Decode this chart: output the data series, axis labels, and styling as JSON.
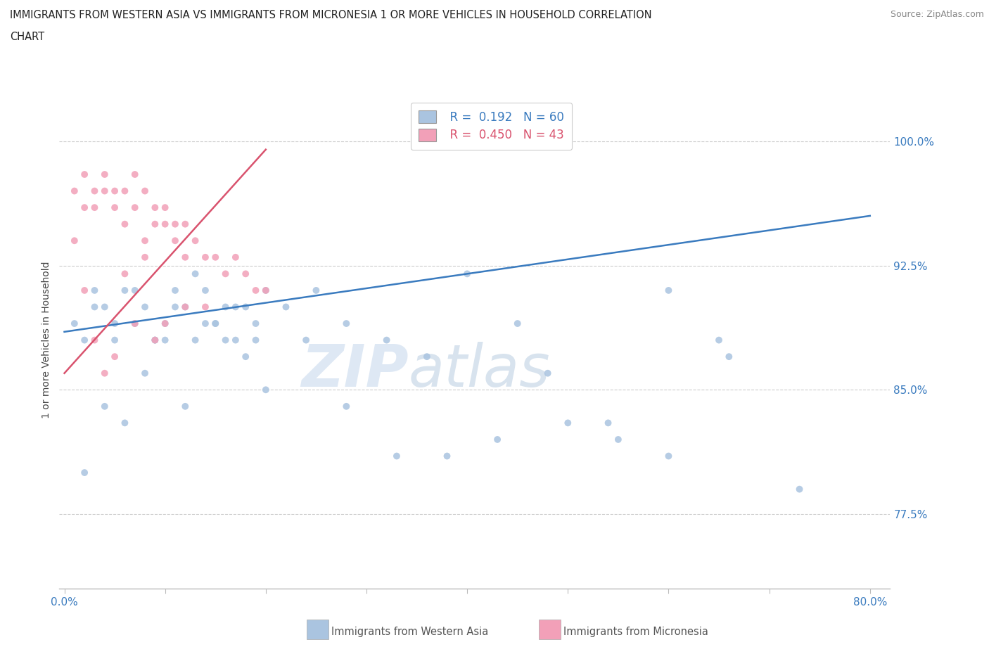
{
  "title_line1": "IMMIGRANTS FROM WESTERN ASIA VS IMMIGRANTS FROM MICRONESIA 1 OR MORE VEHICLES IN HOUSEHOLD CORRELATION",
  "title_line2": "CHART",
  "source": "Source: ZipAtlas.com",
  "ylabel": "1 or more Vehicles in Household",
  "ytick_vals": [
    77.5,
    85.0,
    92.5,
    100.0
  ],
  "ytick_labels": [
    "77.5%",
    "85.0%",
    "92.5%",
    "100.0%"
  ],
  "ymin": 73.0,
  "ymax": 103.0,
  "xmin": -0.5,
  "xmax": 82.0,
  "legend_r1": "R =  0.192",
  "legend_n1": "N = 60",
  "legend_r2": "R =  0.450",
  "legend_n2": "N = 43",
  "color_western_asia": "#aac4e0",
  "color_micronesia": "#f2a0b8",
  "trend_color_western": "#3a7bbf",
  "trend_color_micronesia": "#d9536e",
  "watermark_zip": "ZIP",
  "watermark_atlas": "atlas",
  "wa_x": [
    1,
    2,
    3,
    4,
    5,
    6,
    7,
    8,
    9,
    10,
    11,
    12,
    13,
    14,
    15,
    16,
    17,
    18,
    19,
    20,
    3,
    5,
    7,
    9,
    11,
    13,
    15,
    17,
    19,
    22,
    25,
    28,
    32,
    36,
    40,
    45,
    50,
    55,
    60,
    65,
    2,
    4,
    6,
    8,
    10,
    12,
    14,
    16,
    18,
    20,
    24,
    28,
    33,
    38,
    43,
    48,
    54,
    60,
    66,
    73
  ],
  "wa_y": [
    89,
    88,
    91,
    90,
    88,
    91,
    89,
    90,
    88,
    89,
    91,
    90,
    88,
    91,
    89,
    90,
    88,
    90,
    89,
    91,
    90,
    89,
    91,
    88,
    90,
    92,
    89,
    90,
    88,
    90,
    91,
    89,
    88,
    87,
    92,
    89,
    83,
    82,
    91,
    88,
    80,
    84,
    83,
    86,
    88,
    84,
    89,
    88,
    87,
    85,
    88,
    84,
    81,
    81,
    82,
    86,
    83,
    81,
    87,
    79
  ],
  "mic_x": [
    1,
    1,
    2,
    2,
    3,
    3,
    4,
    4,
    5,
    5,
    6,
    6,
    7,
    7,
    8,
    8,
    9,
    9,
    10,
    10,
    11,
    11,
    12,
    12,
    13,
    14,
    15,
    16,
    17,
    18,
    19,
    20,
    3,
    5,
    7,
    9,
    2,
    4,
    6,
    8,
    10,
    12,
    14
  ],
  "mic_y": [
    94,
    97,
    96,
    98,
    96,
    97,
    97,
    98,
    96,
    97,
    95,
    97,
    96,
    98,
    94,
    97,
    95,
    96,
    95,
    96,
    94,
    95,
    93,
    95,
    94,
    93,
    93,
    92,
    93,
    92,
    91,
    91,
    88,
    87,
    89,
    88,
    91,
    86,
    92,
    93,
    89,
    90,
    90
  ],
  "wa_trend_x": [
    0,
    80
  ],
  "wa_trend_y": [
    88.5,
    95.5
  ],
  "mic_trend_x": [
    0,
    20
  ],
  "mic_trend_y": [
    86.0,
    99.5
  ]
}
